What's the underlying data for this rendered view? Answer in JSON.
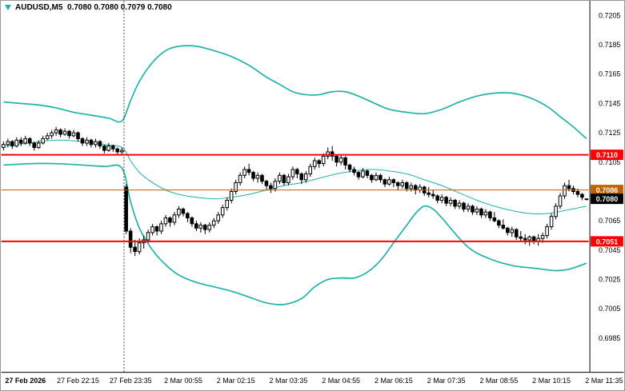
{
  "title": {
    "text": "AUDUSD,M5  0.7080 0.7080 0.7079 0.7080"
  },
  "colors": {
    "background": "#ffffff",
    "band": "#20B2AA",
    "level_red": "#FF0000",
    "level_orange": "#C06000",
    "bull": "#FFFFFF",
    "bear": "#000000",
    "outline": "#000000",
    "axis_text": "#000000",
    "separator": "#444444",
    "current_tag_bg": "#000000",
    "tag_text": "#FFFFFF"
  },
  "chart_data": {
    "type": "candlestick",
    "symbol": "AUDUSD",
    "timeframe": "M5",
    "title": "AUDUSD,M5 0.7080 0.7080 0.7079 0.7080",
    "ohlc_current": {
      "open": 0.708,
      "high": 0.708,
      "low": 0.7079,
      "close": 0.708
    },
    "grid": false,
    "legend_position": "none",
    "ylim": [
      0.6962,
      0.7215
    ],
    "y_ticks": [
      0.7205,
      0.7185,
      0.7165,
      0.7145,
      0.7125,
      0.7105,
      0.7085,
      0.7065,
      0.7045,
      0.7025,
      0.7005,
      0.6985
    ],
    "x_ticks": [
      {
        "index": 5,
        "label": "27 Feb 2026",
        "bold": true
      },
      {
        "index": 17,
        "label": "27 Feb 22:15",
        "bold": false
      },
      {
        "index": 29,
        "label": "27 Feb 23:35",
        "bold": false
      },
      {
        "index": 41,
        "label": "2 Mar 00:55",
        "bold": false
      },
      {
        "index": 53,
        "label": "2 Mar 02:15",
        "bold": false
      },
      {
        "index": 65,
        "label": "2 Mar 03:35",
        "bold": false
      },
      {
        "index": 77,
        "label": "2 Mar 04:55",
        "bold": false
      },
      {
        "index": 89,
        "label": "2 Mar 06:15",
        "bold": false
      },
      {
        "index": 101,
        "label": "2 Mar 07:35",
        "bold": false
      },
      {
        "index": 113,
        "label": "2 Mar 08:55",
        "bold": false
      },
      {
        "index": 125,
        "label": "2 Mar 10:15",
        "bold": false
      },
      {
        "index": 137,
        "label": "2 Mar 11:35",
        "bold": false
      }
    ],
    "day_separator_at_candle": 28,
    "hlines": [
      {
        "price": 0.711,
        "label": "0.7110",
        "color": "#FF0000",
        "width": 2
      },
      {
        "price": 0.7086,
        "label": "0.7086",
        "color": "#C06000",
        "width": 1
      },
      {
        "price": 0.7051,
        "label": "0.7051",
        "color": "#FF0000",
        "width": 2
      }
    ],
    "current_price": {
      "price": 0.708,
      "label": "0.7080"
    },
    "candles": [
      [
        0.7115,
        0.7119,
        0.7113,
        0.7117
      ],
      [
        0.7117,
        0.7121,
        0.7115,
        0.7119
      ],
      [
        0.7119,
        0.712,
        0.7114,
        0.7116
      ],
      [
        0.7116,
        0.7122,
        0.7115,
        0.712
      ],
      [
        0.712,
        0.7122,
        0.7116,
        0.7118
      ],
      [
        0.7118,
        0.7123,
        0.7117,
        0.7121
      ],
      [
        0.7121,
        0.7122,
        0.7116,
        0.7118
      ],
      [
        0.7118,
        0.7119,
        0.7113,
        0.7115
      ],
      [
        0.7115,
        0.712,
        0.7114,
        0.7118
      ],
      [
        0.7118,
        0.7123,
        0.7117,
        0.7121
      ],
      [
        0.7121,
        0.7125,
        0.712,
        0.7123
      ],
      [
        0.7123,
        0.7127,
        0.7121,
        0.7125
      ],
      [
        0.7125,
        0.7129,
        0.7123,
        0.7127
      ],
      [
        0.7127,
        0.7128,
        0.7122,
        0.7124
      ],
      [
        0.7124,
        0.7128,
        0.7123,
        0.7126
      ],
      [
        0.7126,
        0.7127,
        0.7121,
        0.7123
      ],
      [
        0.7123,
        0.7127,
        0.7122,
        0.7125
      ],
      [
        0.7125,
        0.7126,
        0.7119,
        0.7121
      ],
      [
        0.7121,
        0.7122,
        0.7116,
        0.7118
      ],
      [
        0.7118,
        0.7122,
        0.7116,
        0.712
      ],
      [
        0.712,
        0.7121,
        0.7115,
        0.7117
      ],
      [
        0.7117,
        0.7121,
        0.7115,
        0.7119
      ],
      [
        0.7119,
        0.712,
        0.7114,
        0.7116
      ],
      [
        0.7116,
        0.7117,
        0.7111,
        0.7113
      ],
      [
        0.7113,
        0.7118,
        0.7112,
        0.7116
      ],
      [
        0.7116,
        0.7117,
        0.7112,
        0.7114
      ],
      [
        0.7114,
        0.7115,
        0.711,
        0.7112
      ],
      [
        0.7112,
        0.7115,
        0.711,
        0.7113
      ],
      [
        0.7088,
        0.709,
        0.7056,
        0.7058
      ],
      [
        0.7058,
        0.706,
        0.7043,
        0.7047
      ],
      [
        0.7047,
        0.7052,
        0.7041,
        0.7044
      ],
      [
        0.7044,
        0.7053,
        0.7042,
        0.705
      ],
      [
        0.705,
        0.7055,
        0.7046,
        0.7052
      ],
      [
        0.7052,
        0.7059,
        0.705,
        0.7057
      ],
      [
        0.7057,
        0.7063,
        0.7055,
        0.7061
      ],
      [
        0.7061,
        0.7062,
        0.7055,
        0.7058
      ],
      [
        0.7058,
        0.7065,
        0.7056,
        0.7063
      ],
      [
        0.7063,
        0.7069,
        0.7061,
        0.7067
      ],
      [
        0.7067,
        0.7068,
        0.7061,
        0.7064
      ],
      [
        0.7064,
        0.7071,
        0.7062,
        0.7069
      ],
      [
        0.7069,
        0.7075,
        0.7067,
        0.7073
      ],
      [
        0.7073,
        0.7074,
        0.7068,
        0.707
      ],
      [
        0.707,
        0.7071,
        0.7064,
        0.7067
      ],
      [
        0.7067,
        0.7068,
        0.7061,
        0.7063
      ],
      [
        0.7063,
        0.7065,
        0.7058,
        0.706
      ],
      [
        0.706,
        0.7064,
        0.7057,
        0.7062
      ],
      [
        0.7062,
        0.7063,
        0.7056,
        0.7059
      ],
      [
        0.7059,
        0.7064,
        0.7057,
        0.7062
      ],
      [
        0.7062,
        0.7067,
        0.706,
        0.7065
      ],
      [
        0.7065,
        0.7071,
        0.7063,
        0.7069
      ],
      [
        0.7069,
        0.7076,
        0.7067,
        0.7074
      ],
      [
        0.7074,
        0.7081,
        0.7072,
        0.7079
      ],
      [
        0.7079,
        0.7087,
        0.7077,
        0.7085
      ],
      [
        0.7085,
        0.7093,
        0.7083,
        0.7091
      ],
      [
        0.7091,
        0.7098,
        0.7089,
        0.7096
      ],
      [
        0.7096,
        0.7102,
        0.7094,
        0.71
      ],
      [
        0.71,
        0.7104,
        0.7096,
        0.7098
      ],
      [
        0.7098,
        0.7099,
        0.7092,
        0.7094
      ],
      [
        0.7094,
        0.7098,
        0.7091,
        0.7096
      ],
      [
        0.7096,
        0.7097,
        0.709,
        0.7092
      ],
      [
        0.7092,
        0.7093,
        0.7086,
        0.7089
      ],
      [
        0.7089,
        0.7091,
        0.7084,
        0.7087
      ],
      [
        0.7087,
        0.7094,
        0.7085,
        0.7092
      ],
      [
        0.7092,
        0.7098,
        0.709,
        0.7096
      ],
      [
        0.7096,
        0.7097,
        0.7089,
        0.7091
      ],
      [
        0.7091,
        0.7097,
        0.7089,
        0.7095
      ],
      [
        0.7095,
        0.7102,
        0.7093,
        0.71
      ],
      [
        0.71,
        0.7101,
        0.7094,
        0.7097
      ],
      [
        0.7097,
        0.7098,
        0.709,
        0.7093
      ],
      [
        0.7093,
        0.7099,
        0.7091,
        0.7097
      ],
      [
        0.7097,
        0.7104,
        0.7095,
        0.7102
      ],
      [
        0.7102,
        0.7108,
        0.71,
        0.7106
      ],
      [
        0.7106,
        0.7107,
        0.7101,
        0.7104
      ],
      [
        0.7104,
        0.7111,
        0.7102,
        0.7109
      ],
      [
        0.7109,
        0.7115,
        0.7107,
        0.7112
      ],
      [
        0.7112,
        0.7116,
        0.7106,
        0.7109
      ],
      [
        0.7109,
        0.711,
        0.7102,
        0.7105
      ],
      [
        0.7105,
        0.711,
        0.7103,
        0.7108
      ],
      [
        0.7108,
        0.7109,
        0.71,
        0.7103
      ],
      [
        0.7103,
        0.7104,
        0.7098,
        0.71
      ],
      [
        0.71,
        0.7102,
        0.7096,
        0.7098
      ],
      [
        0.7098,
        0.7099,
        0.7093,
        0.7095
      ],
      [
        0.7095,
        0.7101,
        0.7094,
        0.7099
      ],
      [
        0.7099,
        0.71,
        0.7094,
        0.7096
      ],
      [
        0.7096,
        0.7097,
        0.7091,
        0.7093
      ],
      [
        0.7093,
        0.7098,
        0.7092,
        0.7096
      ],
      [
        0.7096,
        0.7097,
        0.7091,
        0.7093
      ],
      [
        0.7093,
        0.7094,
        0.7088,
        0.709
      ],
      [
        0.709,
        0.7095,
        0.7089,
        0.7093
      ],
      [
        0.7093,
        0.7094,
        0.7088,
        0.7091
      ],
      [
        0.7091,
        0.7092,
        0.7086,
        0.7089
      ],
      [
        0.7089,
        0.7093,
        0.7087,
        0.7091
      ],
      [
        0.7091,
        0.7092,
        0.7085,
        0.7087
      ],
      [
        0.7087,
        0.7091,
        0.7085,
        0.7089
      ],
      [
        0.7089,
        0.709,
        0.7083,
        0.7086
      ],
      [
        0.7086,
        0.709,
        0.7084,
        0.7088
      ],
      [
        0.7088,
        0.7089,
        0.7082,
        0.7084
      ],
      [
        0.7084,
        0.7088,
        0.7081,
        0.7083
      ],
      [
        0.7083,
        0.7086,
        0.708,
        0.7082
      ],
      [
        0.7082,
        0.7083,
        0.7077,
        0.7079
      ],
      [
        0.7079,
        0.7083,
        0.7077,
        0.7081
      ],
      [
        0.7081,
        0.7082,
        0.7075,
        0.7077
      ],
      [
        0.7077,
        0.7081,
        0.7075,
        0.7079
      ],
      [
        0.7079,
        0.708,
        0.7073,
        0.7075
      ],
      [
        0.7075,
        0.7079,
        0.7073,
        0.7077
      ],
      [
        0.7077,
        0.7078,
        0.7071,
        0.7073
      ],
      [
        0.7073,
        0.7077,
        0.7071,
        0.7075
      ],
      [
        0.7075,
        0.7076,
        0.7069,
        0.7071
      ],
      [
        0.7071,
        0.7075,
        0.7069,
        0.7073
      ],
      [
        0.7073,
        0.7074,
        0.7067,
        0.7069
      ],
      [
        0.7069,
        0.7073,
        0.7067,
        0.7071
      ],
      [
        0.7071,
        0.7072,
        0.7065,
        0.7067
      ],
      [
        0.7067,
        0.7071,
        0.7064,
        0.7065
      ],
      [
        0.7065,
        0.7066,
        0.706,
        0.7062
      ],
      [
        0.7062,
        0.7066,
        0.7059,
        0.706
      ],
      [
        0.706,
        0.7061,
        0.7055,
        0.7057
      ],
      [
        0.7057,
        0.7061,
        0.7054,
        0.7059
      ],
      [
        0.7059,
        0.706,
        0.7052,
        0.7054
      ],
      [
        0.7054,
        0.7058,
        0.7051,
        0.7053
      ],
      [
        0.7053,
        0.7056,
        0.7049,
        0.7052
      ],
      [
        0.7052,
        0.7055,
        0.7048,
        0.7054
      ],
      [
        0.7054,
        0.7055,
        0.7049,
        0.7051
      ],
      [
        0.7051,
        0.7056,
        0.7048,
        0.7053
      ],
      [
        0.7053,
        0.7057,
        0.705,
        0.7055
      ],
      [
        0.7055,
        0.7063,
        0.7053,
        0.7061
      ],
      [
        0.7061,
        0.707,
        0.7059,
        0.7068
      ],
      [
        0.7068,
        0.7077,
        0.7066,
        0.7075
      ],
      [
        0.7075,
        0.7084,
        0.7073,
        0.7082
      ],
      [
        0.7082,
        0.7091,
        0.708,
        0.7089
      ],
      [
        0.7089,
        0.7093,
        0.7085,
        0.7087
      ],
      [
        0.7087,
        0.7089,
        0.7083,
        0.7085
      ],
      [
        0.7085,
        0.7087,
        0.7081,
        0.7083
      ],
      [
        0.7083,
        0.7084,
        0.7079,
        0.7081
      ],
      [
        0.708,
        0.708,
        0.7079,
        0.708
      ]
    ],
    "bollinger": {
      "upper": [
        [
          0,
          0.7146
        ],
        [
          4,
          0.7145
        ],
        [
          8,
          0.7144
        ],
        [
          12,
          0.7142
        ],
        [
          16,
          0.7139
        ],
        [
          20,
          0.7137
        ],
        [
          24,
          0.7135
        ],
        [
          27,
          0.7133
        ],
        [
          29,
          0.7147
        ],
        [
          31,
          0.716
        ],
        [
          34,
          0.7173
        ],
        [
          37,
          0.7181
        ],
        [
          40,
          0.7184
        ],
        [
          44,
          0.7184
        ],
        [
          48,
          0.7181
        ],
        [
          52,
          0.7177
        ],
        [
          56,
          0.7171
        ],
        [
          60,
          0.7163
        ],
        [
          63,
          0.7158
        ],
        [
          66,
          0.7153
        ],
        [
          69,
          0.7151
        ],
        [
          72,
          0.7151
        ],
        [
          75,
          0.7153
        ],
        [
          78,
          0.7153
        ],
        [
          81,
          0.715
        ],
        [
          84,
          0.7146
        ],
        [
          88,
          0.7141
        ],
        [
          92,
          0.7139
        ],
        [
          96,
          0.7138
        ],
        [
          100,
          0.7141
        ],
        [
          104,
          0.7146
        ],
        [
          108,
          0.715
        ],
        [
          112,
          0.7152
        ],
        [
          116,
          0.7152
        ],
        [
          120,
          0.7149
        ],
        [
          124,
          0.7143
        ],
        [
          127,
          0.7136
        ],
        [
          130,
          0.7129
        ],
        [
          133,
          0.7121
        ]
      ],
      "middle": [
        [
          0,
          0.7116
        ],
        [
          6,
          0.7118
        ],
        [
          12,
          0.712
        ],
        [
          18,
          0.7119
        ],
        [
          23,
          0.7117
        ],
        [
          27,
          0.7115
        ],
        [
          29,
          0.7106
        ],
        [
          31,
          0.7098
        ],
        [
          34,
          0.7091
        ],
        [
          37,
          0.7086
        ],
        [
          40,
          0.7083
        ],
        [
          44,
          0.7081
        ],
        [
          48,
          0.708
        ],
        [
          52,
          0.7081
        ],
        [
          56,
          0.7083
        ],
        [
          60,
          0.7086
        ],
        [
          64,
          0.7089
        ],
        [
          68,
          0.7091
        ],
        [
          72,
          0.7094
        ],
        [
          76,
          0.7097
        ],
        [
          80,
          0.7099
        ],
        [
          84,
          0.71
        ],
        [
          88,
          0.7099
        ],
        [
          92,
          0.7097
        ],
        [
          96,
          0.7093
        ],
        [
          100,
          0.7089
        ],
        [
          104,
          0.7084
        ],
        [
          108,
          0.7079
        ],
        [
          112,
          0.7075
        ],
        [
          116,
          0.7072
        ],
        [
          120,
          0.707
        ],
        [
          124,
          0.707
        ],
        [
          128,
          0.7072
        ],
        [
          133,
          0.7075
        ]
      ],
      "lower": [
        [
          0,
          0.7103
        ],
        [
          6,
          0.7104
        ],
        [
          12,
          0.7104
        ],
        [
          18,
          0.7103
        ],
        [
          23,
          0.7102
        ],
        [
          27,
          0.7101
        ],
        [
          29,
          0.7078
        ],
        [
          31,
          0.706
        ],
        [
          34,
          0.7045
        ],
        [
          37,
          0.7035
        ],
        [
          40,
          0.7028
        ],
        [
          44,
          0.7023
        ],
        [
          48,
          0.702
        ],
        [
          52,
          0.7017
        ],
        [
          56,
          0.7013
        ],
        [
          60,
          0.7009
        ],
        [
          64,
          0.7008
        ],
        [
          68,
          0.7012
        ],
        [
          71,
          0.702
        ],
        [
          74,
          0.7025
        ],
        [
          77,
          0.7026
        ],
        [
          80,
          0.7026
        ],
        [
          83,
          0.703
        ],
        [
          86,
          0.7038
        ],
        [
          89,
          0.705
        ],
        [
          92,
          0.7062
        ],
        [
          94,
          0.707
        ],
        [
          96,
          0.7075
        ],
        [
          98,
          0.7073
        ],
        [
          100,
          0.7067
        ],
        [
          102,
          0.706
        ],
        [
          104,
          0.7053
        ],
        [
          106,
          0.7047
        ],
        [
          108,
          0.7043
        ],
        [
          111,
          0.7039
        ],
        [
          114,
          0.7036
        ],
        [
          117,
          0.7034
        ],
        [
          120,
          0.7033
        ],
        [
          123,
          0.7032
        ],
        [
          126,
          0.7031
        ],
        [
          129,
          0.7032
        ],
        [
          133,
          0.7036
        ]
      ]
    }
  }
}
